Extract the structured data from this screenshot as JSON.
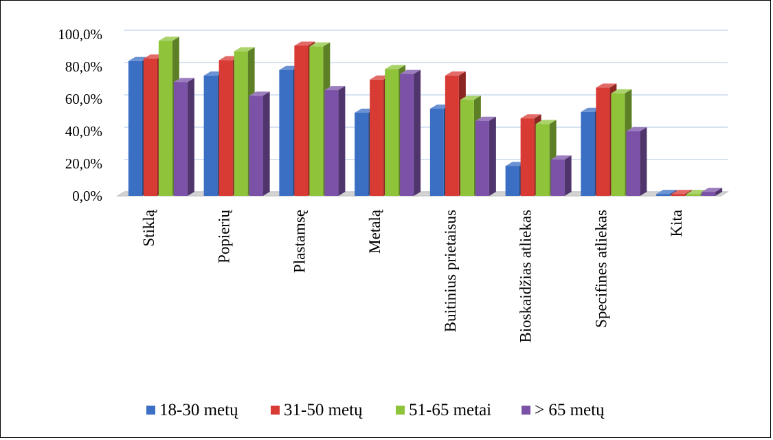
{
  "chart_data": {
    "type": "bar",
    "title": "",
    "xlabel": "",
    "ylabel": "",
    "ylim": [
      0,
      100
    ],
    "y_ticks": [
      "0,0%",
      "20,0%",
      "40,0%",
      "60,0%",
      "80,0%",
      "100,0%"
    ],
    "y_tick_values": [
      0,
      20,
      40,
      60,
      80,
      100
    ],
    "grid": true,
    "legend_position": "bottom",
    "categories": [
      "Stiklą",
      "Popierių",
      "Plastamsę",
      "Metalą",
      "Buitinius prietaisus",
      "Bioskaidžias atliekas",
      "Specifines atliekas",
      "Kita"
    ],
    "series": [
      {
        "name": "18-30 metų",
        "color": "#3a6fc4",
        "values": [
          83.5,
          74.5,
          78,
          51.5,
          54,
          18.5,
          52,
          1.2
        ]
      },
      {
        "name": "31-50 metų",
        "color": "#d83a34",
        "values": [
          85,
          84,
          93,
          72,
          74.5,
          48,
          67,
          1.2
        ]
      },
      {
        "name": "51-65 metai",
        "color": "#8fc43a",
        "values": [
          96,
          89.5,
          92.5,
          78.5,
          59.5,
          44.5,
          63.5,
          1.2
        ]
      },
      {
        "name": "> 65 metų",
        "color": "#7b52a8",
        "values": [
          70.5,
          62,
          65.5,
          75.5,
          46.5,
          22.5,
          40,
          2.5
        ]
      }
    ]
  }
}
